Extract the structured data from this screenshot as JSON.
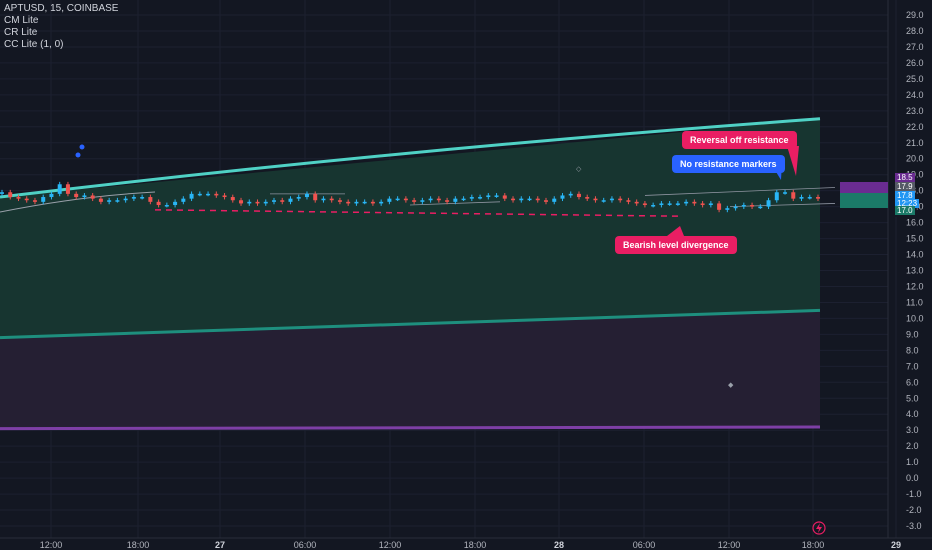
{
  "legend": {
    "symbol_line": "APTUSD, 15, COINBASE",
    "indicators": [
      "CM Lite",
      "CR Lite",
      "CC Lite (1, 0)"
    ]
  },
  "callouts": {
    "reversal": "Reversal off resistance",
    "no_resistance": "No resistance markers",
    "bearish": "Bearish level divergence"
  },
  "price_tags": {
    "t1": "18.5",
    "t2": "17.9",
    "t3": "17.8",
    "t4": "12:23",
    "t5": "17.0"
  },
  "colors": {
    "background": "#131722",
    "band_fill": "#173530",
    "lower_fill": "#251f33",
    "upper_band": "#4fd1c5",
    "mid_band": "#1e8f7e",
    "lower_band": "#7e3fa6",
    "bull": "#29b6f6",
    "bear": "#ef5350",
    "dashed": "#e91e63",
    "purple_tag": "#6a2c91",
    "teal_tag": "#1b7a68"
  },
  "chart_data": {
    "type": "candlestick",
    "title": "APTUSD, 15, COINBASE",
    "y_ticks": [
      "29.0",
      "28.0",
      "27.0",
      "26.0",
      "25.0",
      "24.0",
      "23.0",
      "22.0",
      "21.0",
      "20.0",
      "19.0",
      "18.0",
      "17.0",
      "16.0",
      "15.0",
      "14.0",
      "13.0",
      "12.0",
      "11.0",
      "10.0",
      "9.0",
      "8.0",
      "7.0",
      "6.0",
      "5.0",
      "4.0",
      "3.0",
      "2.0",
      "1.0",
      "0.0",
      "-1.0",
      "-2.0",
      "-3.0"
    ],
    "y_range": [
      -3.0,
      29.0
    ],
    "x_ticks": [
      "12:00",
      "18:00",
      "27",
      "06:00",
      "12:00",
      "18:00",
      "28",
      "06:00",
      "12:00",
      "18:00",
      "29"
    ],
    "x_range_hours": [
      0,
      51
    ],
    "bands": {
      "upper": {
        "start": 17.6,
        "end": 22.5
      },
      "middle": {
        "start": 8.8,
        "end": 10.5
      },
      "lower": {
        "start": 3.1,
        "end": 3.2
      }
    },
    "dashed_level": {
      "start": 16.8,
      "end": 16.4
    },
    "close_series": [
      17.9,
      17.6,
      17.5,
      17.4,
      17.3,
      17.6,
      17.8,
      18.4,
      17.8,
      17.6,
      17.7,
      17.5,
      17.3,
      17.4,
      17.4,
      17.5,
      17.6,
      17.6,
      17.3,
      17.1,
      17.1,
      17.3,
      17.5,
      17.8,
      17.8,
      17.8,
      17.7,
      17.6,
      17.4,
      17.2,
      17.3,
      17.2,
      17.3,
      17.4,
      17.3,
      17.5,
      17.6,
      17.8,
      17.4,
      17.5,
      17.4,
      17.3,
      17.2,
      17.3,
      17.3,
      17.2,
      17.3,
      17.5,
      17.5,
      17.4,
      17.3,
      17.4,
      17.5,
      17.4,
      17.3,
      17.5,
      17.5,
      17.6,
      17.6,
      17.7,
      17.7,
      17.5,
      17.4,
      17.5,
      17.5,
      17.4,
      17.3,
      17.5,
      17.7,
      17.8,
      17.6,
      17.5,
      17.4,
      17.4,
      17.5,
      17.4,
      17.3,
      17.2,
      17.1,
      17.1,
      17.2,
      17.2,
      17.2,
      17.3,
      17.2,
      17.1,
      17.2,
      16.8,
      16.9,
      17.0,
      17.1,
      17.0,
      17.0,
      17.4,
      17.9,
      17.9,
      17.5,
      17.6,
      17.6,
      17.5
    ]
  }
}
